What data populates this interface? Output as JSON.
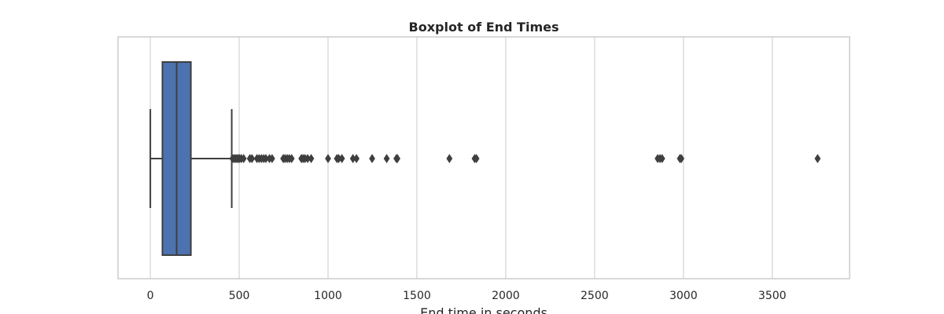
{
  "chart_data": {
    "type": "boxplot",
    "title": "Boxplot of End Times",
    "xlabel": "End time in seconds",
    "ylabel": "",
    "xlim": [
      -182,
      3935
    ],
    "xticks": [
      0,
      500,
      1000,
      1500,
      2000,
      2500,
      3000,
      3500
    ],
    "xtick_labels": [
      "0",
      "500",
      "1000",
      "1500",
      "2000",
      "2500",
      "3000",
      "3500"
    ],
    "orientation": "horizontal",
    "grid": "vertical",
    "legend": "none",
    "box": {
      "whisker_low": 0,
      "q1": 68,
      "median": 148,
      "q3": 228,
      "whisker_high": 458
    },
    "outliers": [
      462,
      470,
      478,
      486,
      494,
      502,
      512,
      525,
      560,
      572,
      600,
      612,
      625,
      638,
      650,
      670,
      685,
      748,
      758,
      770,
      782,
      795,
      850,
      860,
      870,
      885,
      905,
      1000,
      1050,
      1060,
      1078,
      1140,
      1160,
      1248,
      1330,
      1385,
      1390,
      1683,
      1825,
      1835,
      2855,
      2868,
      2880,
      2980,
      2988,
      3755
    ],
    "colors": {
      "box_fill": "#4c72b0",
      "edge": "#3f3f3f",
      "grid": "#d3d3d3",
      "frame": "#cccccc"
    }
  }
}
